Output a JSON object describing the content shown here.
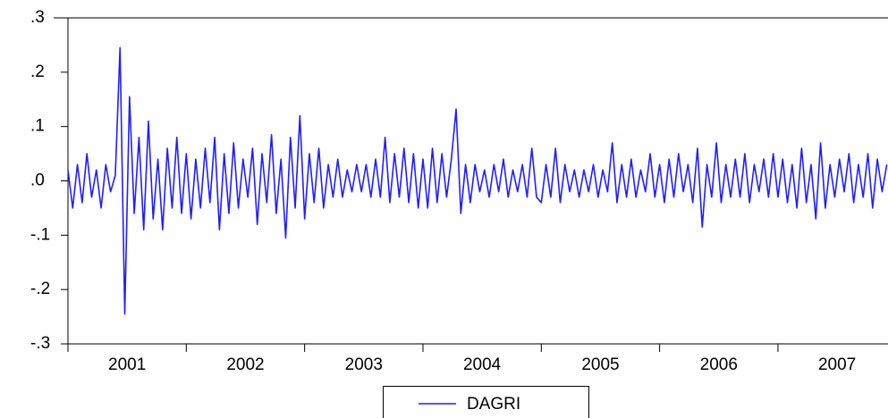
{
  "chart_data": {
    "type": "line",
    "x": [
      2001,
      2001.04,
      2001.08,
      2001.12,
      2001.16,
      2001.2,
      2001.24,
      2001.28,
      2001.32,
      2001.36,
      2001.4,
      2001.44,
      2001.48,
      2001.52,
      2001.56,
      2001.6,
      2001.64,
      2001.68,
      2001.72,
      2001.76,
      2001.8,
      2001.84,
      2001.88,
      2001.92,
      2001.96,
      2002,
      2002.04,
      2002.08,
      2002.12,
      2002.16,
      2002.2,
      2002.24,
      2002.28,
      2002.32,
      2002.36,
      2002.4,
      2002.44,
      2002.48,
      2002.52,
      2002.56,
      2002.6,
      2002.64,
      2002.68,
      2002.72,
      2002.76,
      2002.8,
      2002.84,
      2002.88,
      2002.92,
      2002.96,
      2003,
      2003.04,
      2003.08,
      2003.12,
      2003.16,
      2003.2,
      2003.24,
      2003.28,
      2003.32,
      2003.36,
      2003.4,
      2003.44,
      2003.48,
      2003.52,
      2003.56,
      2003.6,
      2003.64,
      2003.68,
      2003.72,
      2003.76,
      2003.8,
      2003.84,
      2003.88,
      2003.92,
      2003.96,
      2004,
      2004.04,
      2004.08,
      2004.12,
      2004.16,
      2004.2,
      2004.24,
      2004.28,
      2004.32,
      2004.36,
      2004.4,
      2004.44,
      2004.48,
      2004.52,
      2004.56,
      2004.6,
      2004.64,
      2004.68,
      2004.72,
      2004.76,
      2004.8,
      2004.84,
      2004.88,
      2004.92,
      2004.96,
      2005,
      2005.04,
      2005.08,
      2005.12,
      2005.16,
      2005.2,
      2005.24,
      2005.28,
      2005.32,
      2005.36,
      2005.4,
      2005.44,
      2005.48,
      2005.52,
      2005.56,
      2005.6,
      2005.64,
      2005.68,
      2005.72,
      2005.76,
      2005.8,
      2005.84,
      2005.88,
      2005.92,
      2005.96,
      2006,
      2006.04,
      2006.08,
      2006.12,
      2006.16,
      2006.2,
      2006.24,
      2006.28,
      2006.32,
      2006.36,
      2006.4,
      2006.44,
      2006.48,
      2006.52,
      2006.56,
      2006.6,
      2006.64,
      2006.68,
      2006.72,
      2006.76,
      2006.8,
      2006.84,
      2006.88,
      2006.92,
      2006.96,
      2007,
      2007.04,
      2007.08,
      2007.12,
      2007.16,
      2007.2,
      2007.24,
      2007.28,
      2007.32,
      2007.36,
      2007.4,
      2007.44,
      2007.48,
      2007.52,
      2007.56,
      2007.6,
      2007.64,
      2007.68,
      2007.72,
      2007.76,
      2007.8,
      2007.84,
      2007.88,
      2007.92
    ],
    "series": [
      {
        "name": "DAGRI",
        "color": "#1f1fff",
        "values": [
          0.02,
          -0.05,
          0.03,
          -0.04,
          0.05,
          -0.03,
          0.02,
          -0.05,
          0.03,
          -0.02,
          0.01,
          0.245,
          -0.245,
          0.155,
          -0.06,
          0.08,
          -0.09,
          0.11,
          -0.07,
          0.04,
          -0.09,
          0.06,
          -0.05,
          0.08,
          -0.06,
          0.05,
          -0.07,
          0.04,
          -0.05,
          0.06,
          -0.04,
          0.08,
          -0.09,
          0.05,
          -0.06,
          0.07,
          -0.05,
          0.04,
          -0.03,
          0.06,
          -0.08,
          0.05,
          -0.04,
          0.085,
          -0.06,
          0.04,
          -0.105,
          0.08,
          -0.05,
          0.12,
          -0.07,
          0.05,
          -0.04,
          0.06,
          -0.05,
          0.03,
          -0.03,
          0.04,
          -0.03,
          0.02,
          -0.02,
          0.03,
          -0.02,
          0.03,
          -0.03,
          0.04,
          -0.03,
          0.08,
          -0.04,
          0.05,
          -0.03,
          0.06,
          -0.04,
          0.05,
          -0.05,
          0.04,
          -0.05,
          0.06,
          -0.04,
          0.05,
          -0.03,
          0.04,
          0.132,
          -0.06,
          0.03,
          -0.04,
          0.03,
          -0.02,
          0.02,
          -0.03,
          0.03,
          -0.02,
          0.04,
          -0.03,
          0.02,
          -0.02,
          0.03,
          -0.03,
          0.06,
          -0.03,
          -0.04,
          0.03,
          -0.03,
          0.06,
          -0.04,
          0.03,
          -0.02,
          0.02,
          -0.03,
          0.02,
          -0.02,
          0.03,
          -0.03,
          0.02,
          -0.02,
          0.07,
          -0.04,
          0.03,
          -0.03,
          0.04,
          -0.03,
          0.02,
          -0.02,
          0.05,
          -0.03,
          0.03,
          -0.04,
          0.04,
          -0.03,
          0.05,
          -0.02,
          0.03,
          -0.04,
          0.06,
          -0.085,
          0.03,
          -0.03,
          0.07,
          -0.04,
          0.03,
          -0.03,
          0.04,
          -0.03,
          0.05,
          -0.04,
          0.03,
          -0.02,
          0.04,
          -0.03,
          0.05,
          -0.03,
          0.04,
          -0.04,
          0.03,
          -0.05,
          0.06,
          -0.04,
          0.03,
          -0.07,
          0.07,
          -0.05,
          0.03,
          -0.03,
          0.04,
          -0.02,
          0.05,
          -0.04,
          0.03,
          -0.03,
          0.05,
          -0.05,
          0.04,
          -0.02,
          0.03
        ]
      }
    ],
    "xlim": [
      2001,
      2007.93
    ],
    "xticks": [
      2001,
      2002,
      2003,
      2004,
      2005,
      2006,
      2007
    ],
    "ylim": [
      -0.3,
      0.3
    ],
    "yticks": [
      {
        "value": -0.3,
        "label": "-.3"
      },
      {
        "value": -0.2,
        "label": "-.2"
      },
      {
        "value": -0.1,
        "label": "-.1"
      },
      {
        "value": 0,
        "label": ".0"
      },
      {
        "value": 0.1,
        "label": ".1"
      },
      {
        "value": 0.2,
        "label": ".2"
      },
      {
        "value": 0.3,
        "label": ".3"
      }
    ],
    "legend": "bottom"
  }
}
